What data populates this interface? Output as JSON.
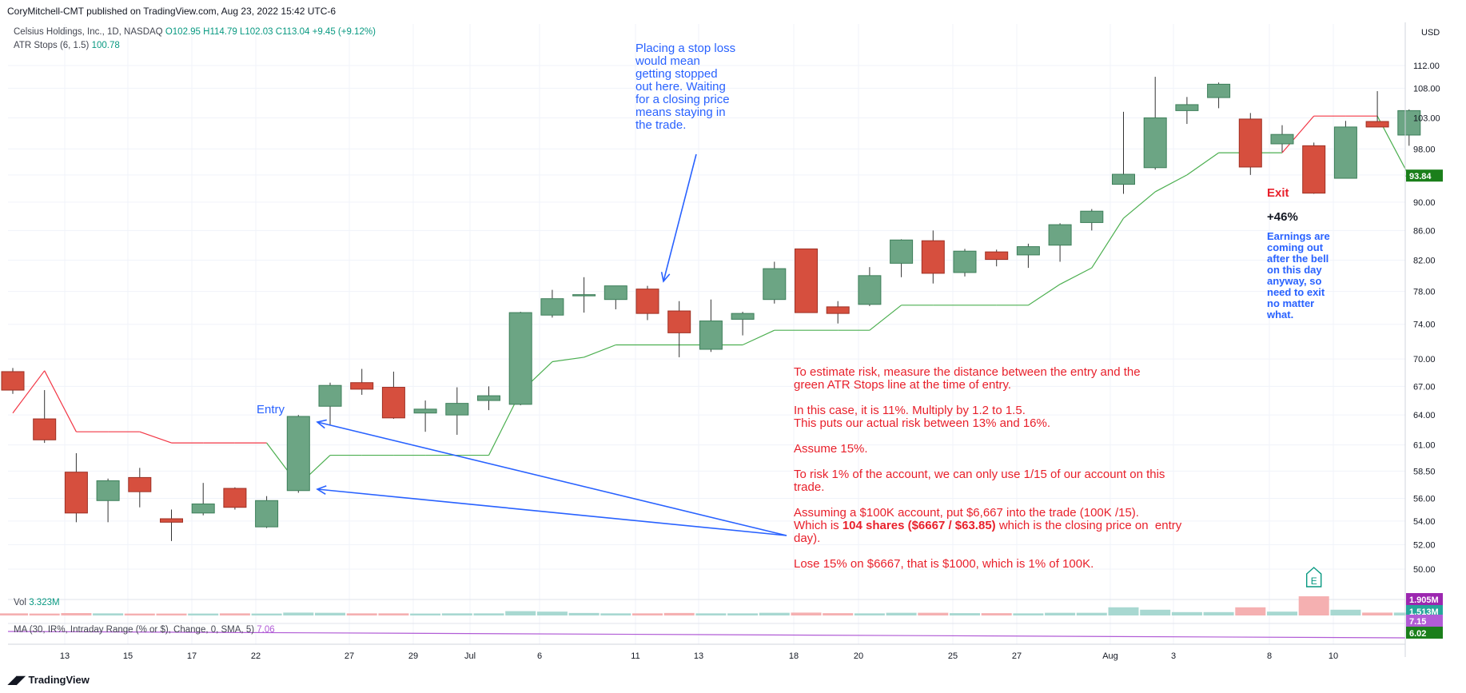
{
  "header": {
    "publisher": "CoryMitchell-CMT published on TradingView.com, Aug 23, 2022 15:42 UTC-6"
  },
  "legend": {
    "symbol": "Celsius Holdings, Inc., 1D, NASDAQ",
    "open": "O102.95",
    "high": "H114.79",
    "low": "L102.03",
    "close": "C113.04",
    "change": "+9.45 (+9.12%)",
    "atr_label": "ATR Stops (6, 1.5)",
    "atr_value": "100.78",
    "vol_label": "Vol",
    "vol_value": "3.323M",
    "ma_label": "MA (30, IR%, Intraday Range (% or $), Change, 0, SMA, 5)",
    "ma_value": "7.06"
  },
  "price_axis": {
    "currency": "USD",
    "ticks": [
      "112.00",
      "108.00",
      "103.00",
      "98.00",
      "94.00",
      "90.00",
      "86.00",
      "82.00",
      "78.00",
      "74.00",
      "70.00",
      "67.00",
      "64.00",
      "61.00",
      "58.50",
      "56.00",
      "54.00",
      "52.00",
      "50.00"
    ],
    "last_badge": "93.84",
    "vol_badge_purple": "1.905M",
    "vol_badge_teal": "1.513M",
    "ma_badge_1": "7.15",
    "ma_badge_2": "6.02"
  },
  "time_axis": {
    "ticks": [
      "13",
      "15",
      "17",
      "22",
      "27",
      "29",
      "Jul",
      "6",
      "11",
      "13",
      "18",
      "20",
      "25",
      "27",
      "Aug",
      "3",
      "8",
      "10"
    ]
  },
  "annotations": {
    "stop_note": "Placing a stop loss\nwould mean\ngetting stopped\nout here. Waiting\nfor a closing price\nmeans staying in\nthe trade.",
    "entry": "Entry",
    "exit": "Exit",
    "gain": "+46%",
    "earnings_note": "Earnings are\ncoming out\nafter the bell\non this day\nanyway, so\nneed to exit\nno matter\nwhat.",
    "risk_p1": "To estimate risk, measure the distance between the entry and the\ngreen ATR Stops line at the time of entry.",
    "risk_p2": "In this case, it is 11%. Multiply by 1.2 to 1.5.\nThis puts our actual risk between 13% and 16%.",
    "risk_p3": "Assume 15%.",
    "risk_p4": "To risk 1% of the account, we can only use 1/15 of our account on this\ntrade.",
    "risk_p5a": "Assuming a $100K account, put $6,667 into the trade (100K /15).\nWhich is ",
    "risk_p5b": "104 shares ($6667 / $63.85)",
    "risk_p5c": " which is the closing price on  entry\nday).",
    "risk_p6": "Lose 15% on $6667, that is $1000, which is 1% of 100K.",
    "earnings_marker": "E"
  },
  "footer": {
    "brand": "TradingView"
  },
  "colors": {
    "up": "#6ca584",
    "down": "#d64f3e",
    "stop_up": "#4caf50",
    "stop_down": "#f23645",
    "note_red": "#e8202b",
    "note_blue": "#2962ff"
  },
  "chart_data": {
    "type": "candlestick",
    "title": "Celsius Holdings, Inc., 1D, NASDAQ",
    "ylabel": "USD",
    "ylim": [
      48.5,
      114
    ],
    "y_scale": "log",
    "grid": true,
    "candles": [
      {
        "o": 68.6,
        "h": 69.0,
        "l": 66.2,
        "c": 66.6
      },
      {
        "o": 63.6,
        "h": 66.6,
        "l": 61.2,
        "c": 61.5
      },
      {
        "o": 58.4,
        "h": 60.2,
        "l": 53.9,
        "c": 54.7
      },
      {
        "o": 55.8,
        "h": 57.8,
        "l": 53.9,
        "c": 57.6
      },
      {
        "o": 57.9,
        "h": 58.8,
        "l": 55.2,
        "c": 56.6
      },
      {
        "o": 54.2,
        "h": 55.0,
        "l": 52.3,
        "c": 53.9
      },
      {
        "o": 54.7,
        "h": 57.4,
        "l": 54.5,
        "c": 55.5
      },
      {
        "o": 56.9,
        "h": 57.0,
        "l": 55.0,
        "c": 55.2
      },
      {
        "o": 53.5,
        "h": 56.2,
        "l": 53.4,
        "c": 55.8
      },
      {
        "o": 56.7,
        "h": 64.0,
        "l": 56.5,
        "c": 63.85
      },
      {
        "o": 64.9,
        "h": 67.4,
        "l": 63.0,
        "c": 67.1
      },
      {
        "o": 67.4,
        "h": 68.9,
        "l": 66.1,
        "c": 66.7
      },
      {
        "o": 66.9,
        "h": 68.6,
        "l": 63.6,
        "c": 63.7
      },
      {
        "o": 64.2,
        "h": 65.5,
        "l": 62.3,
        "c": 64.6
      },
      {
        "o": 64.0,
        "h": 66.9,
        "l": 62.0,
        "c": 65.2
      },
      {
        "o": 65.5,
        "h": 67.0,
        "l": 64.5,
        "c": 66.0
      },
      {
        "o": 65.1,
        "h": 75.5,
        "l": 65.0,
        "c": 75.4
      },
      {
        "o": 75.1,
        "h": 78.2,
        "l": 74.8,
        "c": 77.1
      },
      {
        "o": 77.6,
        "h": 79.8,
        "l": 75.4,
        "c": 77.6
      },
      {
        "o": 77.0,
        "h": 78.7,
        "l": 75.8,
        "c": 78.7
      },
      {
        "o": 78.3,
        "h": 78.7,
        "l": 74.5,
        "c": 75.3
      },
      {
        "o": 75.6,
        "h": 76.8,
        "l": 70.2,
        "c": 73.0
      },
      {
        "o": 71.1,
        "h": 77.0,
        "l": 70.8,
        "c": 74.4
      },
      {
        "o": 74.6,
        "h": 75.5,
        "l": 72.7,
        "c": 75.3
      },
      {
        "o": 77.0,
        "h": 81.8,
        "l": 76.5,
        "c": 80.9
      },
      {
        "o": 83.5,
        "h": 83.5,
        "l": 75.4,
        "c": 75.4
      },
      {
        "o": 76.1,
        "h": 76.8,
        "l": 74.1,
        "c": 75.3
      },
      {
        "o": 76.4,
        "h": 81.1,
        "l": 76.2,
        "c": 80.0
      },
      {
        "o": 81.6,
        "h": 84.8,
        "l": 79.8,
        "c": 84.7
      },
      {
        "o": 84.6,
        "h": 86.0,
        "l": 79.0,
        "c": 80.3
      },
      {
        "o": 80.4,
        "h": 83.5,
        "l": 79.9,
        "c": 83.2
      },
      {
        "o": 83.1,
        "h": 83.4,
        "l": 81.2,
        "c": 82.1
      },
      {
        "o": 82.7,
        "h": 84.2,
        "l": 81.0,
        "c": 83.8
      },
      {
        "o": 84.0,
        "h": 87.0,
        "l": 81.8,
        "c": 86.8
      },
      {
        "o": 87.1,
        "h": 89.0,
        "l": 86.0,
        "c": 88.7
      },
      {
        "o": 92.6,
        "h": 104.0,
        "l": 91.2,
        "c": 94.1
      },
      {
        "o": 95.1,
        "h": 110.0,
        "l": 94.8,
        "c": 103.0
      },
      {
        "o": 104.2,
        "h": 106.5,
        "l": 102.0,
        "c": 105.2
      },
      {
        "o": 106.4,
        "h": 109.0,
        "l": 104.6,
        "c": 108.7
      },
      {
        "o": 102.8,
        "h": 103.8,
        "l": 94.0,
        "c": 95.2
      },
      {
        "o": 98.8,
        "h": 101.8,
        "l": 97.5,
        "c": 100.3
      },
      {
        "o": 98.5,
        "h": 99.0,
        "l": 91.2,
        "c": 91.3
      },
      {
        "o": 93.5,
        "h": 102.5,
        "l": 93.5,
        "c": 101.5
      },
      {
        "o": 102.4,
        "h": 107.5,
        "l": 101.5,
        "c": 101.5
      },
      {
        "o": 100.2,
        "h": 104.4,
        "l": 98.5,
        "c": 104.2
      }
    ],
    "atr_stops": [
      {
        "v": 64.2,
        "side": "short"
      },
      {
        "v": 68.7,
        "side": "short"
      },
      {
        "v": 62.3,
        "side": "short"
      },
      {
        "v": 62.3,
        "side": "short"
      },
      {
        "v": 62.3,
        "side": "short"
      },
      {
        "v": 61.2,
        "side": "short"
      },
      {
        "v": 61.2,
        "side": "short"
      },
      {
        "v": 61.2,
        "side": "short"
      },
      {
        "v": 61.2,
        "side": "short"
      },
      {
        "v": 57.2,
        "side": "long"
      },
      {
        "v": 60.0,
        "side": "long"
      },
      {
        "v": 60.0,
        "side": "long"
      },
      {
        "v": 60.0,
        "side": "long"
      },
      {
        "v": 60.0,
        "side": "long"
      },
      {
        "v": 60.0,
        "side": "long"
      },
      {
        "v": 60.0,
        "side": "long"
      },
      {
        "v": 66.4,
        "side": "long"
      },
      {
        "v": 69.7,
        "side": "long"
      },
      {
        "v": 70.2,
        "side": "long"
      },
      {
        "v": 71.6,
        "side": "long"
      },
      {
        "v": 71.6,
        "side": "long"
      },
      {
        "v": 71.6,
        "side": "long"
      },
      {
        "v": 71.6,
        "side": "long"
      },
      {
        "v": 71.6,
        "side": "long"
      },
      {
        "v": 73.3,
        "side": "long"
      },
      {
        "v": 73.3,
        "side": "long"
      },
      {
        "v": 73.3,
        "side": "long"
      },
      {
        "v": 73.3,
        "side": "long"
      },
      {
        "v": 76.3,
        "side": "long"
      },
      {
        "v": 76.3,
        "side": "long"
      },
      {
        "v": 76.3,
        "side": "long"
      },
      {
        "v": 76.3,
        "side": "long"
      },
      {
        "v": 76.3,
        "side": "long"
      },
      {
        "v": 78.9,
        "side": "long"
      },
      {
        "v": 81.0,
        "side": "long"
      },
      {
        "v": 87.7,
        "side": "long"
      },
      {
        "v": 91.5,
        "side": "long"
      },
      {
        "v": 94.0,
        "side": "long"
      },
      {
        "v": 97.4,
        "side": "long"
      },
      {
        "v": 97.4,
        "side": "long"
      },
      {
        "v": 97.4,
        "side": "long"
      },
      {
        "v": 103.3,
        "side": "short"
      },
      {
        "v": 103.3,
        "side": "short"
      },
      {
        "v": 103.3,
        "side": "short"
      },
      {
        "v": 93.84,
        "side": "long"
      }
    ],
    "volume": {
      "label": "Vol 3.323M",
      "earnings_day_index": 41,
      "relative": [
        0.22,
        0.2,
        0.25,
        0.22,
        0.2,
        0.2,
        0.2,
        0.22,
        0.2,
        0.3,
        0.28,
        0.22,
        0.22,
        0.2,
        0.22,
        0.22,
        0.45,
        0.4,
        0.26,
        0.22,
        0.22,
        0.26,
        0.22,
        0.22,
        0.28,
        0.3,
        0.24,
        0.22,
        0.28,
        0.28,
        0.24,
        0.24,
        0.22,
        0.28,
        0.28,
        0.85,
        0.6,
        0.35,
        0.35,
        0.85,
        0.4,
        2.0,
        0.6,
        0.3,
        0.3
      ]
    }
  }
}
